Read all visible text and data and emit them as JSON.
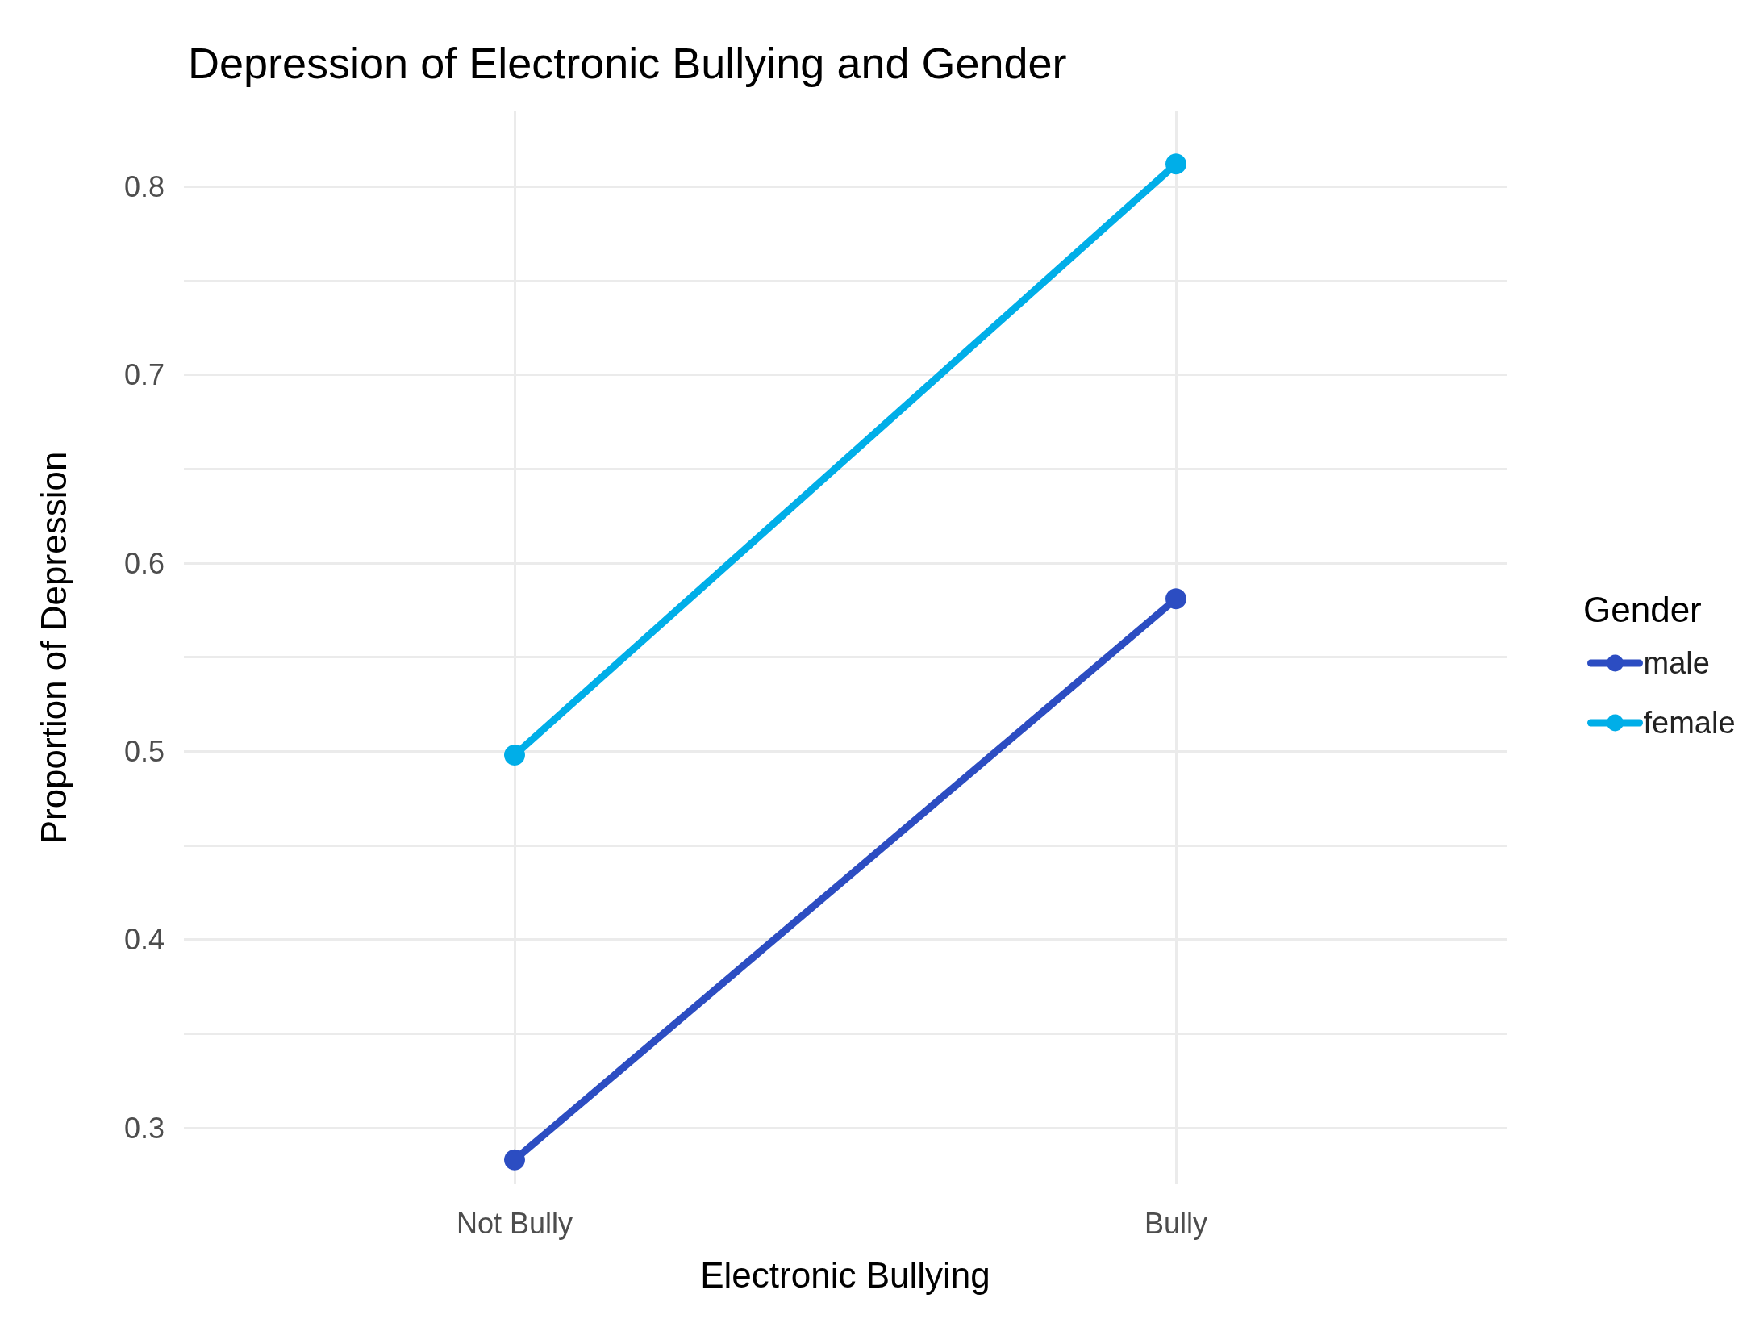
{
  "chart_data": {
    "type": "line",
    "title": "Depression of Electronic Bullying and Gender",
    "xlabel": "Electronic Bullying",
    "ylabel": "Proportion of Depression",
    "legend_title": "Gender",
    "categories": [
      "Not Bully",
      "Bully"
    ],
    "series": [
      {
        "name": "male",
        "color": "#2c4dc2",
        "values": [
          0.283,
          0.581
        ]
      },
      {
        "name": "female",
        "color": "#00aee8",
        "values": [
          0.498,
          0.812
        ]
      }
    ],
    "ylim": [
      0.27,
      0.84
    ],
    "yticks": [
      0.3,
      {
        "value": 0.35,
        "label": null
      },
      0.4,
      {
        "value": 0.45,
        "label": null
      },
      0.5,
      {
        "value": 0.55,
        "label": null
      },
      0.6,
      {
        "value": 0.65,
        "label": null
      },
      0.7,
      {
        "value": 0.75,
        "label": null
      },
      0.8
    ],
    "grid": true,
    "legend": "right",
    "marker": "circle",
    "line_style": "solid"
  }
}
